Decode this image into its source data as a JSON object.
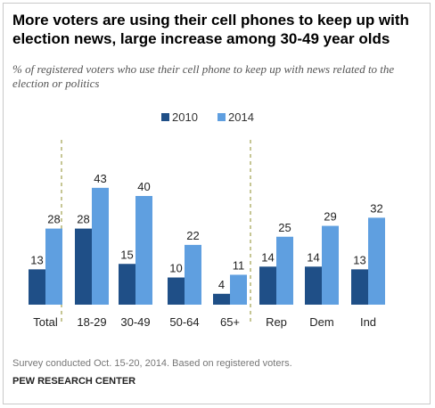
{
  "title": "More voters are using their cell phones to keep up with election news, large increase among 30-49 year olds",
  "subtitle": "% of registered voters who use their cell phone to keep up with news related to the election or politics",
  "note": "Survey conducted Oct. 15-20, 2014. Based on registered voters.",
  "source": "PEW RESEARCH CENTER",
  "chart_data": {
    "type": "bar",
    "categories": [
      "Total",
      "18-29",
      "30-49",
      "50-64",
      "65+",
      "Rep",
      "Dem",
      "Ind"
    ],
    "series": [
      {
        "name": "2010",
        "values": [
          13,
          28,
          15,
          10,
          4,
          14,
          14,
          13
        ],
        "color": "#1f4f87"
      },
      {
        "name": "2014",
        "values": [
          28,
          43,
          40,
          22,
          11,
          25,
          29,
          32
        ],
        "color": "#5f9fe0"
      }
    ],
    "ylim": [
      0,
      43
    ],
    "legend_position": "top",
    "grid": false,
    "group_separators": "dashed lines after Total and after 65+",
    "separator_color": "#a7a85a"
  }
}
